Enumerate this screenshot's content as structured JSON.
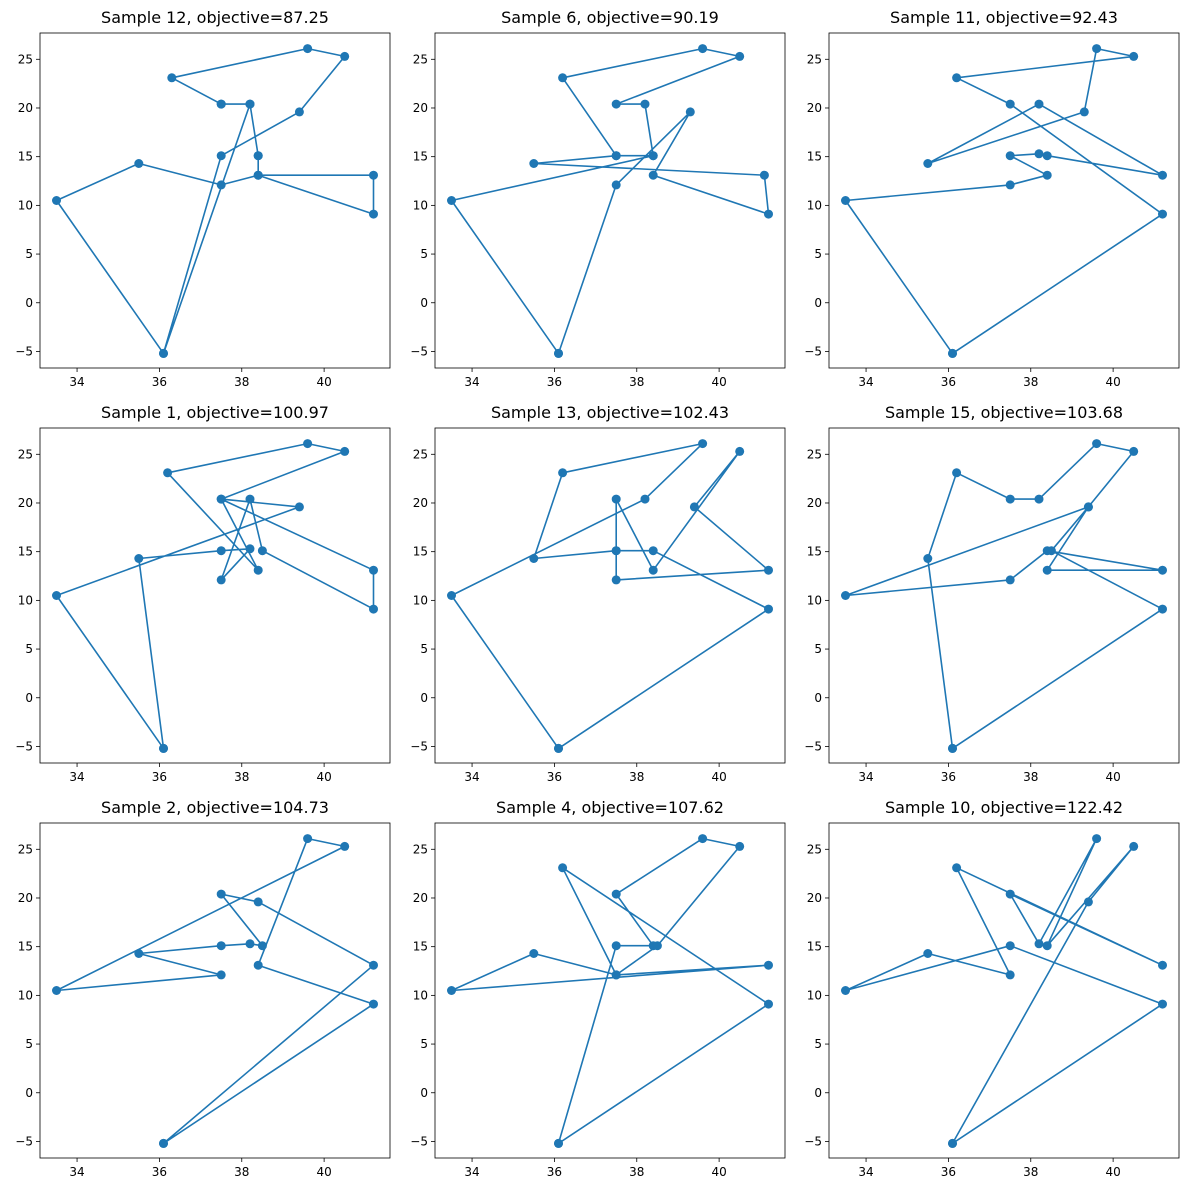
{
  "chart_data": [
    {
      "type": "line",
      "title": "Sample 12, objective=87.25",
      "xlim": [
        33.1,
        41.6
      ],
      "ylim": [
        -6.7,
        27.7
      ],
      "xticks": [
        34,
        36,
        38,
        40
      ],
      "yticks": [
        -5,
        0,
        5,
        10,
        15,
        20,
        25
      ],
      "x": [
        36.1,
        38.2,
        38.4,
        38.4,
        41.2,
        41.2,
        38.4,
        37.5,
        35.5,
        33.5,
        36.1,
        37.5,
        39.4,
        40.5,
        39.6,
        36.3,
        37.5,
        37.5,
        38.2,
        38.4
      ],
      "y": [
        -5.2,
        20.4,
        15.1,
        13.1,
        13.1,
        9.1,
        13.1,
        12.1,
        14.3,
        10.5,
        -5.2,
        15.1,
        19.6,
        25.3,
        26.1,
        23.1,
        20.4,
        20.4,
        20.4,
        15.1
      ]
    },
    {
      "type": "line",
      "title": "Sample 6, objective=90.19",
      "xlim": [
        33.1,
        41.6
      ],
      "ylim": [
        -6.7,
        27.7
      ],
      "xticks": [
        34,
        36,
        38,
        40
      ],
      "yticks": [
        -5,
        0,
        5,
        10,
        15,
        20,
        25
      ],
      "x": [
        36.1,
        33.5,
        38.4,
        37.5,
        36.2,
        39.6,
        40.5,
        37.5,
        38.2,
        38.4,
        37.5,
        35.5,
        41.1,
        41.2,
        38.4,
        39.3,
        37.5,
        36.1
      ],
      "y": [
        -5.2,
        10.5,
        15.1,
        15.1,
        23.1,
        26.1,
        25.3,
        20.4,
        20.4,
        15.1,
        15.1,
        14.3,
        13.1,
        9.1,
        13.1,
        19.6,
        12.1,
        -5.2
      ]
    },
    {
      "type": "line",
      "title": "Sample 11, objective=92.43",
      "xlim": [
        33.1,
        41.6
      ],
      "ylim": [
        -6.7,
        27.7
      ],
      "xticks": [
        34,
        36,
        38,
        40
      ],
      "yticks": [
        -5,
        0,
        5,
        10,
        15,
        20,
        25
      ],
      "x": [
        36.1,
        33.5,
        37.5,
        38.4,
        37.5,
        38.2,
        38.4,
        41.2,
        38.2,
        35.5,
        39.3,
        39.6,
        40.5,
        36.2,
        37.5,
        41.2,
        36.1
      ],
      "y": [
        -5.2,
        10.5,
        12.1,
        13.1,
        15.1,
        15.3,
        15.1,
        13.1,
        20.4,
        14.3,
        19.6,
        26.1,
        25.3,
        23.1,
        20.4,
        9.1,
        -5.2
      ]
    },
    {
      "type": "line",
      "title": "Sample 1, objective=100.97",
      "xlim": [
        33.1,
        41.6
      ],
      "ylim": [
        -6.7,
        27.7
      ],
      "xticks": [
        34,
        36,
        38,
        40
      ],
      "yticks": [
        -5,
        0,
        5,
        10,
        15,
        20,
        25
      ],
      "x": [
        36.1,
        33.5,
        39.4,
        37.5,
        38.4,
        36.2,
        39.6,
        40.5,
        37.5,
        41.2,
        41.2,
        38.5,
        38.2,
        37.5,
        38.2,
        37.5,
        35.5,
        36.1
      ],
      "y": [
        -5.2,
        10.5,
        19.6,
        20.4,
        13.1,
        23.1,
        26.1,
        25.3,
        20.4,
        13.1,
        9.1,
        15.1,
        20.4,
        12.1,
        15.3,
        15.1,
        14.3,
        -5.2
      ]
    },
    {
      "type": "line",
      "title": "Sample 13, objective=102.43",
      "xlim": [
        33.1,
        41.6
      ],
      "ylim": [
        -6.7,
        27.7
      ],
      "xticks": [
        34,
        36,
        38,
        40
      ],
      "yticks": [
        -5,
        0,
        5,
        10,
        15,
        20,
        25
      ],
      "x": [
        36.1,
        33.5,
        38.2,
        39.6,
        36.2,
        35.5,
        37.5,
        37.5,
        41.2,
        39.4,
        40.5,
        38.4,
        37.5,
        37.5,
        38.4,
        41.2,
        36.1
      ],
      "y": [
        -5.2,
        10.5,
        20.4,
        26.1,
        23.1,
        14.3,
        15.1,
        12.1,
        13.1,
        19.6,
        25.3,
        13.1,
        20.4,
        15.1,
        15.1,
        9.1,
        -5.2
      ]
    },
    {
      "type": "line",
      "title": "Sample 15, objective=103.68",
      "xlim": [
        33.1,
        41.6
      ],
      "ylim": [
        -6.7,
        27.7
      ],
      "xticks": [
        34,
        36,
        38,
        40
      ],
      "yticks": [
        -5,
        0,
        5,
        10,
        15,
        20,
        25
      ],
      "x": [
        36.1,
        35.5,
        36.2,
        37.5,
        38.2,
        39.6,
        40.5,
        39.4,
        38.4,
        41.2,
        38.4,
        37.5,
        33.5,
        39.4,
        38.5,
        41.2,
        36.1
      ],
      "y": [
        -5.2,
        14.3,
        23.1,
        20.4,
        20.4,
        26.1,
        25.3,
        19.6,
        13.1,
        13.1,
        15.1,
        12.1,
        10.5,
        19.6,
        15.1,
        9.1,
        -5.2
      ]
    },
    {
      "type": "line",
      "title": "Sample 2, objective=104.73",
      "xlim": [
        33.1,
        41.6
      ],
      "ylim": [
        -6.7,
        27.7
      ],
      "xticks": [
        34,
        36,
        38,
        40
      ],
      "yticks": [
        -5,
        0,
        5,
        10,
        15,
        20,
        25
      ],
      "x": [
        36.1,
        41.2,
        38.4,
        39.6,
        40.5,
        33.5,
        37.5,
        35.5,
        37.5,
        38.2,
        38.5,
        37.5,
        38.4,
        41.2,
        36.1
      ],
      "y": [
        -5.2,
        9.1,
        13.1,
        26.1,
        25.3,
        10.5,
        12.1,
        14.3,
        15.1,
        15.3,
        15.1,
        20.4,
        19.6,
        13.1,
        -5.2
      ]
    },
    {
      "type": "line",
      "title": "Sample 4, objective=107.62",
      "xlim": [
        33.1,
        41.6
      ],
      "ylim": [
        -6.7,
        27.7
      ],
      "xticks": [
        34,
        36,
        38,
        40
      ],
      "yticks": [
        -5,
        0,
        5,
        10,
        15,
        20,
        25
      ],
      "x": [
        36.1,
        37.5,
        38.4,
        37.5,
        39.6,
        40.5,
        38.5,
        37.5,
        41.2,
        33.5,
        35.5,
        37.5,
        36.2,
        41.2,
        36.1
      ],
      "y": [
        -5.2,
        15.1,
        15.1,
        20.4,
        26.1,
        25.3,
        15.1,
        12.1,
        13.1,
        10.5,
        14.3,
        12.1,
        23.1,
        9.1,
        -5.2
      ]
    },
    {
      "type": "line",
      "title": "Sample 10, objective=122.42",
      "xlim": [
        33.1,
        41.6
      ],
      "ylim": [
        -6.7,
        27.7
      ],
      "xticks": [
        34,
        36,
        38,
        40
      ],
      "yticks": [
        -5,
        0,
        5,
        10,
        15,
        20,
        25
      ],
      "x": [
        36.1,
        39.4,
        40.5,
        38.4,
        39.6,
        38.2,
        37.5,
        41.2,
        36.2,
        37.5,
        35.5,
        33.5,
        37.5,
        41.2,
        36.1
      ],
      "y": [
        -5.2,
        19.6,
        25.3,
        15.1,
        26.1,
        15.3,
        20.4,
        13.1,
        23.1,
        12.1,
        14.3,
        10.5,
        15.1,
        9.1,
        -5.2
      ]
    }
  ],
  "colors": {
    "line": "#1f77b4",
    "marker": "#1f77b4",
    "axes": "#000000",
    "background": "#ffffff"
  }
}
